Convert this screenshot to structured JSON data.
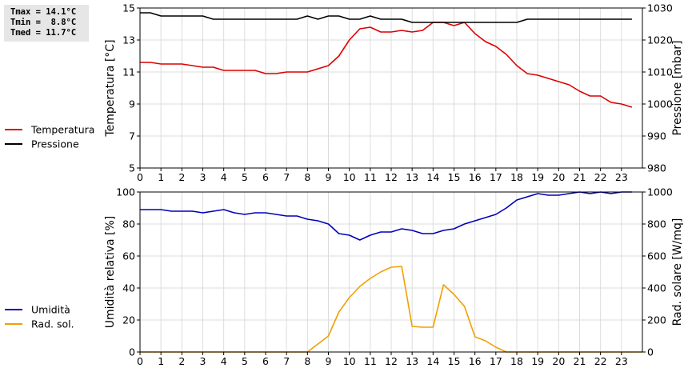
{
  "stats": [
    {
      "label": "Tmax",
      "text": "Tmax = 14.1°C"
    },
    {
      "label": "Tmin",
      "text": "Tmin =  8.8°C"
    },
    {
      "label": "Tmed",
      "text": "Tmed = 11.7°C"
    }
  ],
  "chart_data": [
    {
      "type": "line",
      "title": "",
      "xlabel": "",
      "ylabel": "Temperatura [°C]",
      "ylabel_right": "Pressione [mbar]",
      "xlim": [
        0,
        24
      ],
      "x_ticks": [
        0,
        1,
        2,
        3,
        4,
        5,
        6,
        7,
        8,
        9,
        10,
        11,
        12,
        13,
        14,
        15,
        16,
        17,
        18,
        19,
        20,
        21,
        22,
        23
      ],
      "ylim": [
        5,
        15
      ],
      "y_ticks": [
        5,
        7,
        9,
        11,
        13,
        15
      ],
      "ylim_right": [
        980,
        1030
      ],
      "y_ticks_right": [
        980,
        990,
        1000,
        1010,
        1020,
        1030
      ],
      "grid": true,
      "legend_position": "left",
      "series": [
        {
          "name": "Temperatura",
          "color": "#dd0000",
          "axis": "left",
          "x": [
            0,
            0.5,
            1,
            1.5,
            2,
            2.5,
            3,
            3.5,
            4,
            4.5,
            5,
            5.5,
            6,
            6.5,
            7,
            7.5,
            8,
            8.5,
            9,
            9.5,
            10,
            10.5,
            11,
            11.5,
            12,
            12.5,
            13,
            13.5,
            14,
            14.5,
            15,
            15.5,
            16,
            16.5,
            17,
            17.5,
            18,
            18.5,
            19,
            19.5,
            20,
            20.5,
            21,
            21.5,
            22,
            22.5,
            23,
            23.5
          ],
          "y": [
            11.6,
            11.6,
            11.5,
            11.5,
            11.5,
            11.4,
            11.3,
            11.3,
            11.1,
            11.1,
            11.1,
            11.1,
            10.9,
            10.9,
            11.0,
            11.0,
            11.0,
            11.2,
            11.4,
            12.0,
            13.0,
            13.7,
            13.8,
            13.5,
            13.5,
            13.6,
            13.5,
            13.6,
            14.1,
            14.1,
            13.9,
            14.1,
            13.4,
            12.9,
            12.6,
            12.1,
            11.4,
            10.9,
            10.8,
            10.6,
            10.4,
            10.2,
            9.8,
            9.5,
            9.5,
            9.1,
            9.0,
            8.8
          ]
        },
        {
          "name": "Pressione",
          "color": "#000000",
          "axis": "right",
          "x": [
            0,
            0.5,
            1,
            1.5,
            2,
            2.5,
            3,
            3.5,
            4,
            4.5,
            5,
            5.5,
            6,
            6.5,
            7,
            7.5,
            8,
            8.5,
            9,
            9.5,
            10,
            10.5,
            11,
            11.5,
            12,
            12.5,
            13,
            13.5,
            14,
            14.5,
            15,
            15.5,
            16,
            16.5,
            17,
            17.5,
            18,
            18.5,
            19,
            19.5,
            20,
            20.5,
            21,
            21.5,
            22,
            22.5,
            23,
            23.5
          ],
          "y": [
            1028.5,
            1028.5,
            1027.5,
            1027.5,
            1027.5,
            1027.5,
            1027.5,
            1026.5,
            1026.5,
            1026.5,
            1026.5,
            1026.5,
            1026.5,
            1026.5,
            1026.5,
            1026.5,
            1027.5,
            1026.5,
            1027.5,
            1027.5,
            1026.5,
            1026.5,
            1027.5,
            1026.5,
            1026.5,
            1026.5,
            1025.5,
            1025.5,
            1025.5,
            1025.5,
            1025.5,
            1025.5,
            1025.5,
            1025.5,
            1025.5,
            1025.5,
            1025.5,
            1026.5,
            1026.5,
            1026.5,
            1026.5,
            1026.5,
            1026.5,
            1026.5,
            1026.5,
            1026.5,
            1026.5,
            1026.5
          ]
        }
      ]
    },
    {
      "type": "line",
      "title": "",
      "xlabel": "",
      "ylabel": "Umidità relativa [%]",
      "ylabel_right": "Rad. solare [W/mq]",
      "xlim": [
        0,
        24
      ],
      "x_ticks": [
        0,
        1,
        2,
        3,
        4,
        5,
        6,
        7,
        8,
        9,
        10,
        11,
        12,
        13,
        14,
        15,
        16,
        17,
        18,
        19,
        20,
        21,
        22,
        23
      ],
      "ylim": [
        0,
        100
      ],
      "y_ticks": [
        0,
        20,
        40,
        60,
        80,
        100
      ],
      "ylim_right": [
        0,
        1000
      ],
      "y_ticks_right": [
        0,
        200,
        400,
        600,
        800,
        1000
      ],
      "grid": true,
      "legend_position": "left",
      "series": [
        {
          "name": "Umidità",
          "color": "#0000bb",
          "axis": "left",
          "x": [
            0,
            0.5,
            1,
            1.5,
            2,
            2.5,
            3,
            3.5,
            4,
            4.5,
            5,
            5.5,
            6,
            6.5,
            7,
            7.5,
            8,
            8.5,
            9,
            9.5,
            10,
            10.5,
            11,
            11.5,
            12,
            12.5,
            13,
            13.5,
            14,
            14.5,
            15,
            15.5,
            16,
            16.5,
            17,
            17.5,
            18,
            18.5,
            19,
            19.5,
            20,
            20.5,
            21,
            21.5,
            22,
            22.5,
            23,
            23.5
          ],
          "y": [
            89,
            89,
            89,
            88,
            88,
            88,
            87,
            88,
            89,
            87,
            86,
            87,
            87,
            86,
            85,
            85,
            83,
            82,
            80,
            74,
            73,
            70,
            73,
            75,
            75,
            77,
            76,
            74,
            74,
            76,
            77,
            80,
            82,
            84,
            86,
            90,
            95,
            97,
            99,
            98,
            98,
            99,
            100,
            99,
            100,
            99,
            100,
            100
          ]
        },
        {
          "name": "Rad. sol.",
          "color": "#f0a000",
          "axis": "right",
          "x": [
            0,
            8,
            8.5,
            9,
            9.5,
            10,
            10.5,
            11,
            11.5,
            12,
            12.5,
            13,
            13.5,
            14,
            14.5,
            15,
            15.5,
            16,
            16.5,
            17,
            17.5,
            24
          ],
          "y": [
            0,
            0,
            50,
            100,
            250,
            340,
            410,
            460,
            500,
            530,
            535,
            160,
            155,
            155,
            420,
            360,
            285,
            95,
            70,
            30,
            0,
            0
          ]
        }
      ]
    }
  ]
}
